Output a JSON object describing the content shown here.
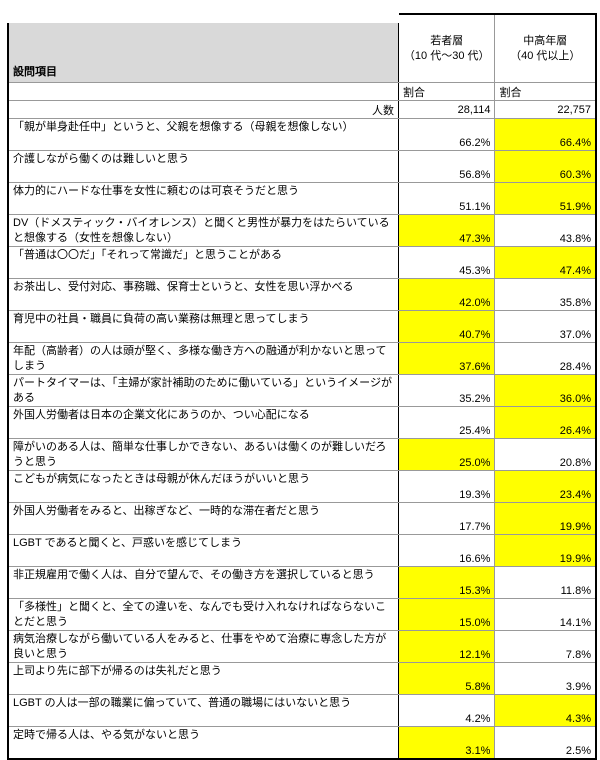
{
  "header": {
    "item_label": "設問項目",
    "groups": [
      {
        "name": "若者層",
        "range": "（10 代～30 代）",
        "sub": "割合",
        "count": "28,114"
      },
      {
        "name": "中高年層",
        "range": "（40 代以上）",
        "sub": "割合",
        "count": "22,757"
      }
    ],
    "count_label": "人数"
  },
  "highlight_color": "#ffff00",
  "rows": [
    {
      "q": "「親が単身赴任中」というと、父親を想像する（母親を想像しない）",
      "young": "66.2%",
      "old": "66.4%",
      "hl": "old"
    },
    {
      "q": "介護しながら働くのは難しいと思う",
      "young": "56.8%",
      "old": "60.3%",
      "hl": "old"
    },
    {
      "q": "体力的にハードな仕事を女性に頼むのは可哀そうだと思う",
      "young": "51.1%",
      "old": "51.9%",
      "hl": "old"
    },
    {
      "q": "DV（ドメスティック・バイオレンス）と聞くと男性が暴力をはたらいていると想像する（女性を想像しない）",
      "young": "47.3%",
      "old": "43.8%",
      "hl": "young"
    },
    {
      "q": "「普通は〇〇だ」「それって常識だ」と思うことがある",
      "young": "45.3%",
      "old": "47.4%",
      "hl": "old"
    },
    {
      "q": "お茶出し、受付対応、事務職、保育士というと、女性を思い浮かべる",
      "young": "42.0%",
      "old": "35.8%",
      "hl": "young"
    },
    {
      "q": "育児中の社員・職員に負荷の高い業務は無理と思ってしまう",
      "young": "40.7%",
      "old": "37.0%",
      "hl": "young"
    },
    {
      "q": "年配（高齢者）の人は頭が堅く、多様な働き方への融通が利かないと思ってしまう",
      "young": "37.6%",
      "old": "28.4%",
      "hl": "young"
    },
    {
      "q": "パートタイマーは、「主婦が家計補助のために働いている」というイメージがある",
      "young": "35.2%",
      "old": "36.0%",
      "hl": "old"
    },
    {
      "q": "外国人労働者は日本の企業文化にあうのか、つい心配になる",
      "young": "25.4%",
      "old": "26.4%",
      "hl": "old"
    },
    {
      "q": "障がいのある人は、簡単な仕事しかできない、あるいは働くのが難しいだろうと思う",
      "young": "25.0%",
      "old": "20.8%",
      "hl": "young"
    },
    {
      "q": "こどもが病気になったときは母親が休んだほうがいいと思う",
      "young": "19.3%",
      "old": "23.4%",
      "hl": "old"
    },
    {
      "q": "外国人労働者をみると、出稼ぎなど、一時的な滞在者だと思う",
      "young": "17.7%",
      "old": "19.9%",
      "hl": "old"
    },
    {
      "q": "LGBT であると聞くと、戸惑いを感じてしまう",
      "young": "16.6%",
      "old": "19.9%",
      "hl": "old"
    },
    {
      "q": "非正規雇用で働く人は、自分で望んで、その働き方を選択していると思う",
      "young": "15.3%",
      "old": "11.8%",
      "hl": "young"
    },
    {
      "q": "「多様性」と聞くと、全ての違いを、なんでも受け入れなければならないことだと思う",
      "young": "15.0%",
      "old": "14.1%",
      "hl": "young"
    },
    {
      "q": "病気治療しながら働いている人をみると、仕事をやめて治療に専念した方が良いと思う",
      "young": "12.1%",
      "old": "7.8%",
      "hl": "young"
    },
    {
      "q": "上司より先に部下が帰るのは失礼だと思う",
      "young": "5.8%",
      "old": "3.9%",
      "hl": "young"
    },
    {
      "q": "LGBT の人は一部の職業に偏っていて、普通の職場にはいないと思う",
      "young": "4.2%",
      "old": "4.3%",
      "hl": "old"
    },
    {
      "q": "定時で帰る人は、やる気がないと思う",
      "young": "3.1%",
      "old": "2.5%",
      "hl": "young"
    }
  ]
}
